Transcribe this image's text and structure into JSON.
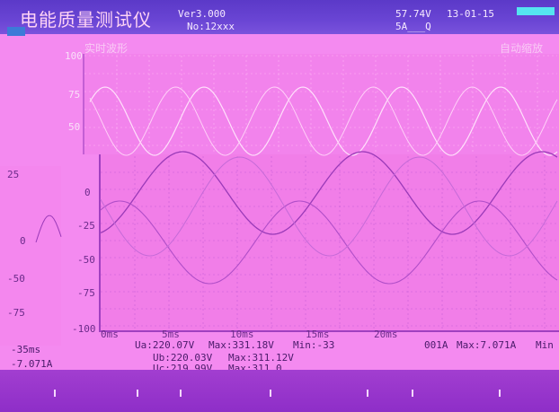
{
  "header": {
    "title": "电能质量测试仪",
    "version": "Ver3.000",
    "serial": "No:12xxx",
    "voltage": "57.74V",
    "date": "13-01-15",
    "current": "5A___Q"
  },
  "back_panel": {
    "label": "实时波形",
    "right_label": "自动缩放",
    "y_ticks": [
      "100",
      "75",
      "50"
    ]
  },
  "front_panel": {
    "y_ticks": [
      "0",
      "-25",
      "-50",
      "-75",
      "-100"
    ],
    "x_ticks": [
      "0ms",
      "5ms",
      "10ms",
      "15ms",
      "20ms"
    ]
  },
  "left_panel": {
    "ticks": [
      "25",
      "0",
      "-50",
      "-75"
    ],
    "x_label": "-35ms"
  },
  "stats": {
    "ua": "Ua:220.07V",
    "ua_max": "Max:331.18V",
    "ua_min": "Min:-33",
    "ia_tail": "001A",
    "ia_max": "Max:7.071A",
    "ia_min": "Min",
    "left_min": "-7.071A",
    "ub": "Ub:220.03V",
    "ub_max": "Max:311.12V",
    "uc": "Uc:219.99V",
    "uc_max": "Max:311.0"
  },
  "colors": {
    "background": "#f48af0",
    "header": "#5b39c8",
    "bottom_bar": "#9a36cc"
  }
}
